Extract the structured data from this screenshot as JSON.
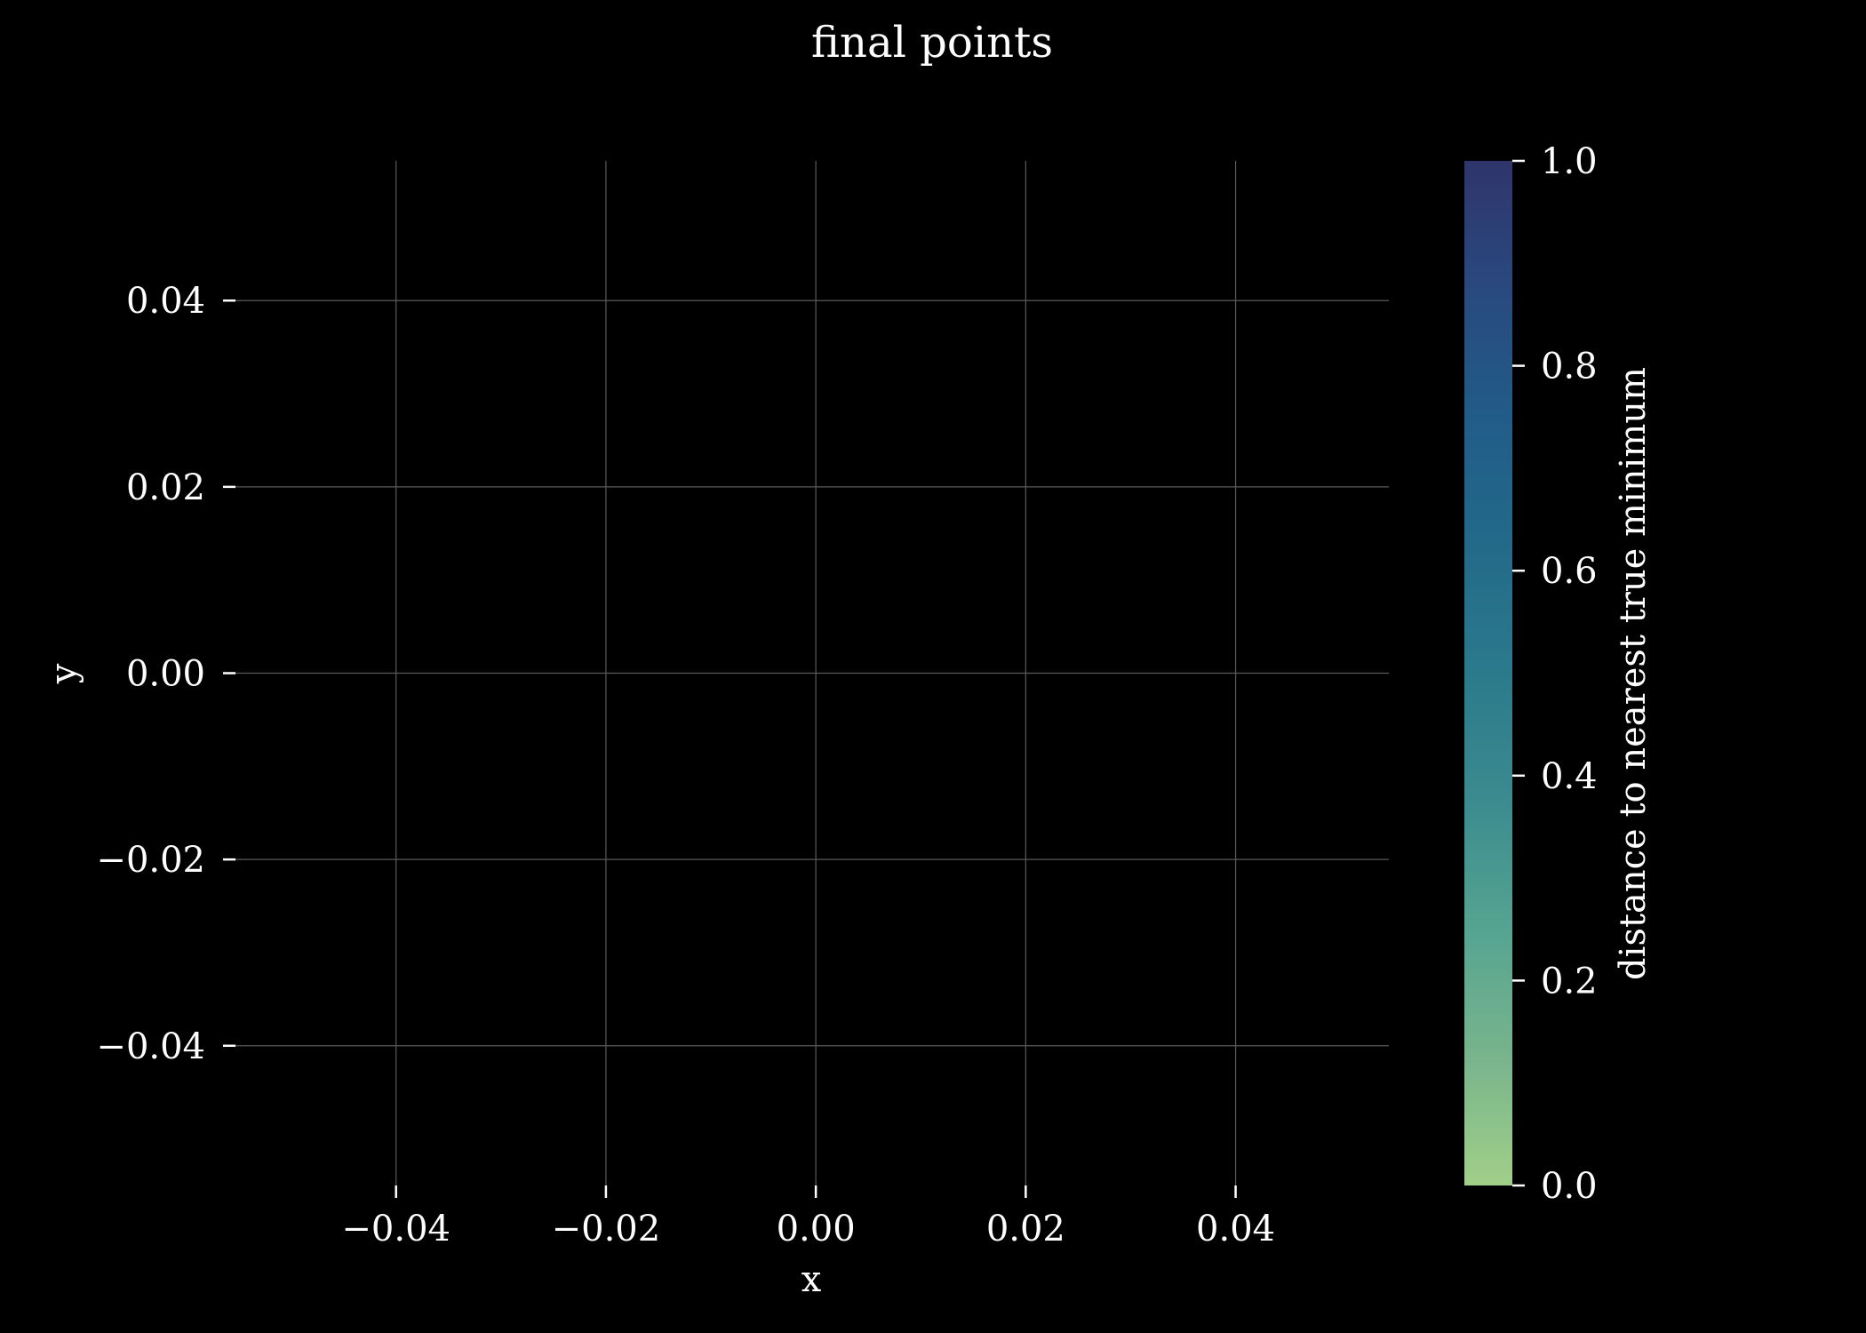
{
  "chart_data": {
    "type": "scatter",
    "title": "final points",
    "xlabel": "x",
    "ylabel": "y",
    "xlim": [
      -0.0553,
      0.0546
    ],
    "ylim": [
      -0.055,
      0.055
    ],
    "xticks": [
      -0.04,
      -0.02,
      0.0,
      0.02,
      0.04
    ],
    "xtick_labels": [
      "−0.04",
      "−0.02",
      "0.00",
      "0.02",
      "0.04"
    ],
    "yticks": [
      0.04,
      0.02,
      0.0,
      -0.02,
      -0.04
    ],
    "ytick_labels": [
      "0.04",
      "0.02",
      "0.00",
      "−0.02",
      "−0.04"
    ],
    "grid": true,
    "points": [],
    "colorbar": {
      "label": "distance to nearest true minimum",
      "range": [
        0.0,
        1.0
      ],
      "ticks": [
        0.0,
        0.2,
        0.4,
        0.6,
        0.8,
        1.0
      ],
      "tick_labels": [
        "0.0",
        "0.2",
        "0.4",
        "0.6",
        "0.8",
        "1.0"
      ],
      "colors": [
        "#a0cf88",
        "#78b48c",
        "#55a491",
        "#3b8b8f",
        "#2b7a8c",
        "#236a8a",
        "#215c88",
        "#29497f",
        "#2f356b"
      ]
    },
    "colors": {
      "background": "#000000",
      "text": "#ffffff",
      "grid": "#5a5a5a"
    }
  }
}
